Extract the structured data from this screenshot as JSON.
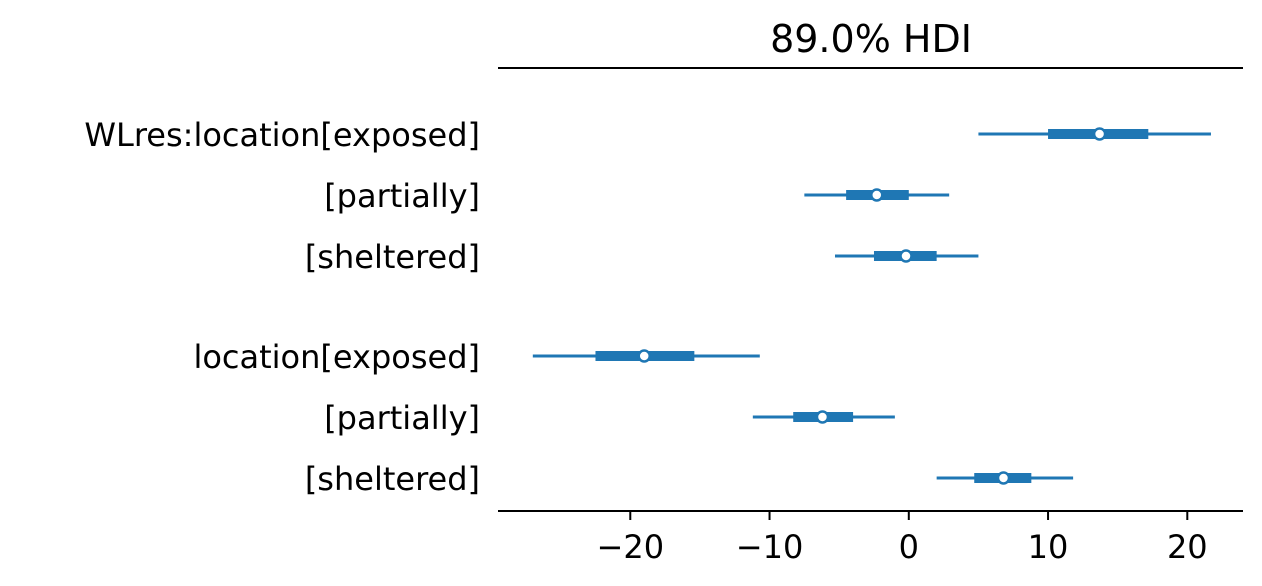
{
  "chart_data": {
    "type": "forest",
    "title": "89.0% HDI",
    "xlim": [
      -29.5,
      24
    ],
    "xticks": [
      -20,
      -10,
      0,
      10,
      20
    ],
    "xtick_labels": [
      "−20",
      "−10",
      "0",
      "10",
      "20"
    ],
    "color": "#1f77b4",
    "grid": false,
    "rows": [
      {
        "label": "WLres:location[exposed]",
        "median": 13.7,
        "hdi_low": 5.0,
        "hdi_high": 21.7,
        "iqr_low": 10.0,
        "iqr_high": 17.2
      },
      {
        "label": "[partially]",
        "median": -2.3,
        "hdi_low": -7.5,
        "hdi_high": 2.9,
        "iqr_low": -4.5,
        "iqr_high": 0.0
      },
      {
        "label": "[sheltered]",
        "median": -0.2,
        "hdi_low": -5.3,
        "hdi_high": 5.0,
        "iqr_low": -2.5,
        "iqr_high": 2.0
      },
      {
        "label": "location[exposed]",
        "median": -19.0,
        "hdi_low": -27.0,
        "hdi_high": -10.7,
        "iqr_low": -22.5,
        "iqr_high": -15.4
      },
      {
        "label": "[partially]",
        "median": -6.2,
        "hdi_low": -11.2,
        "hdi_high": -1.0,
        "iqr_low": -8.3,
        "iqr_high": -4.0
      },
      {
        "label": "[sheltered]",
        "median": 6.8,
        "hdi_low": 2.0,
        "hdi_high": 11.8,
        "iqr_low": 4.7,
        "iqr_high": 8.8
      }
    ]
  }
}
